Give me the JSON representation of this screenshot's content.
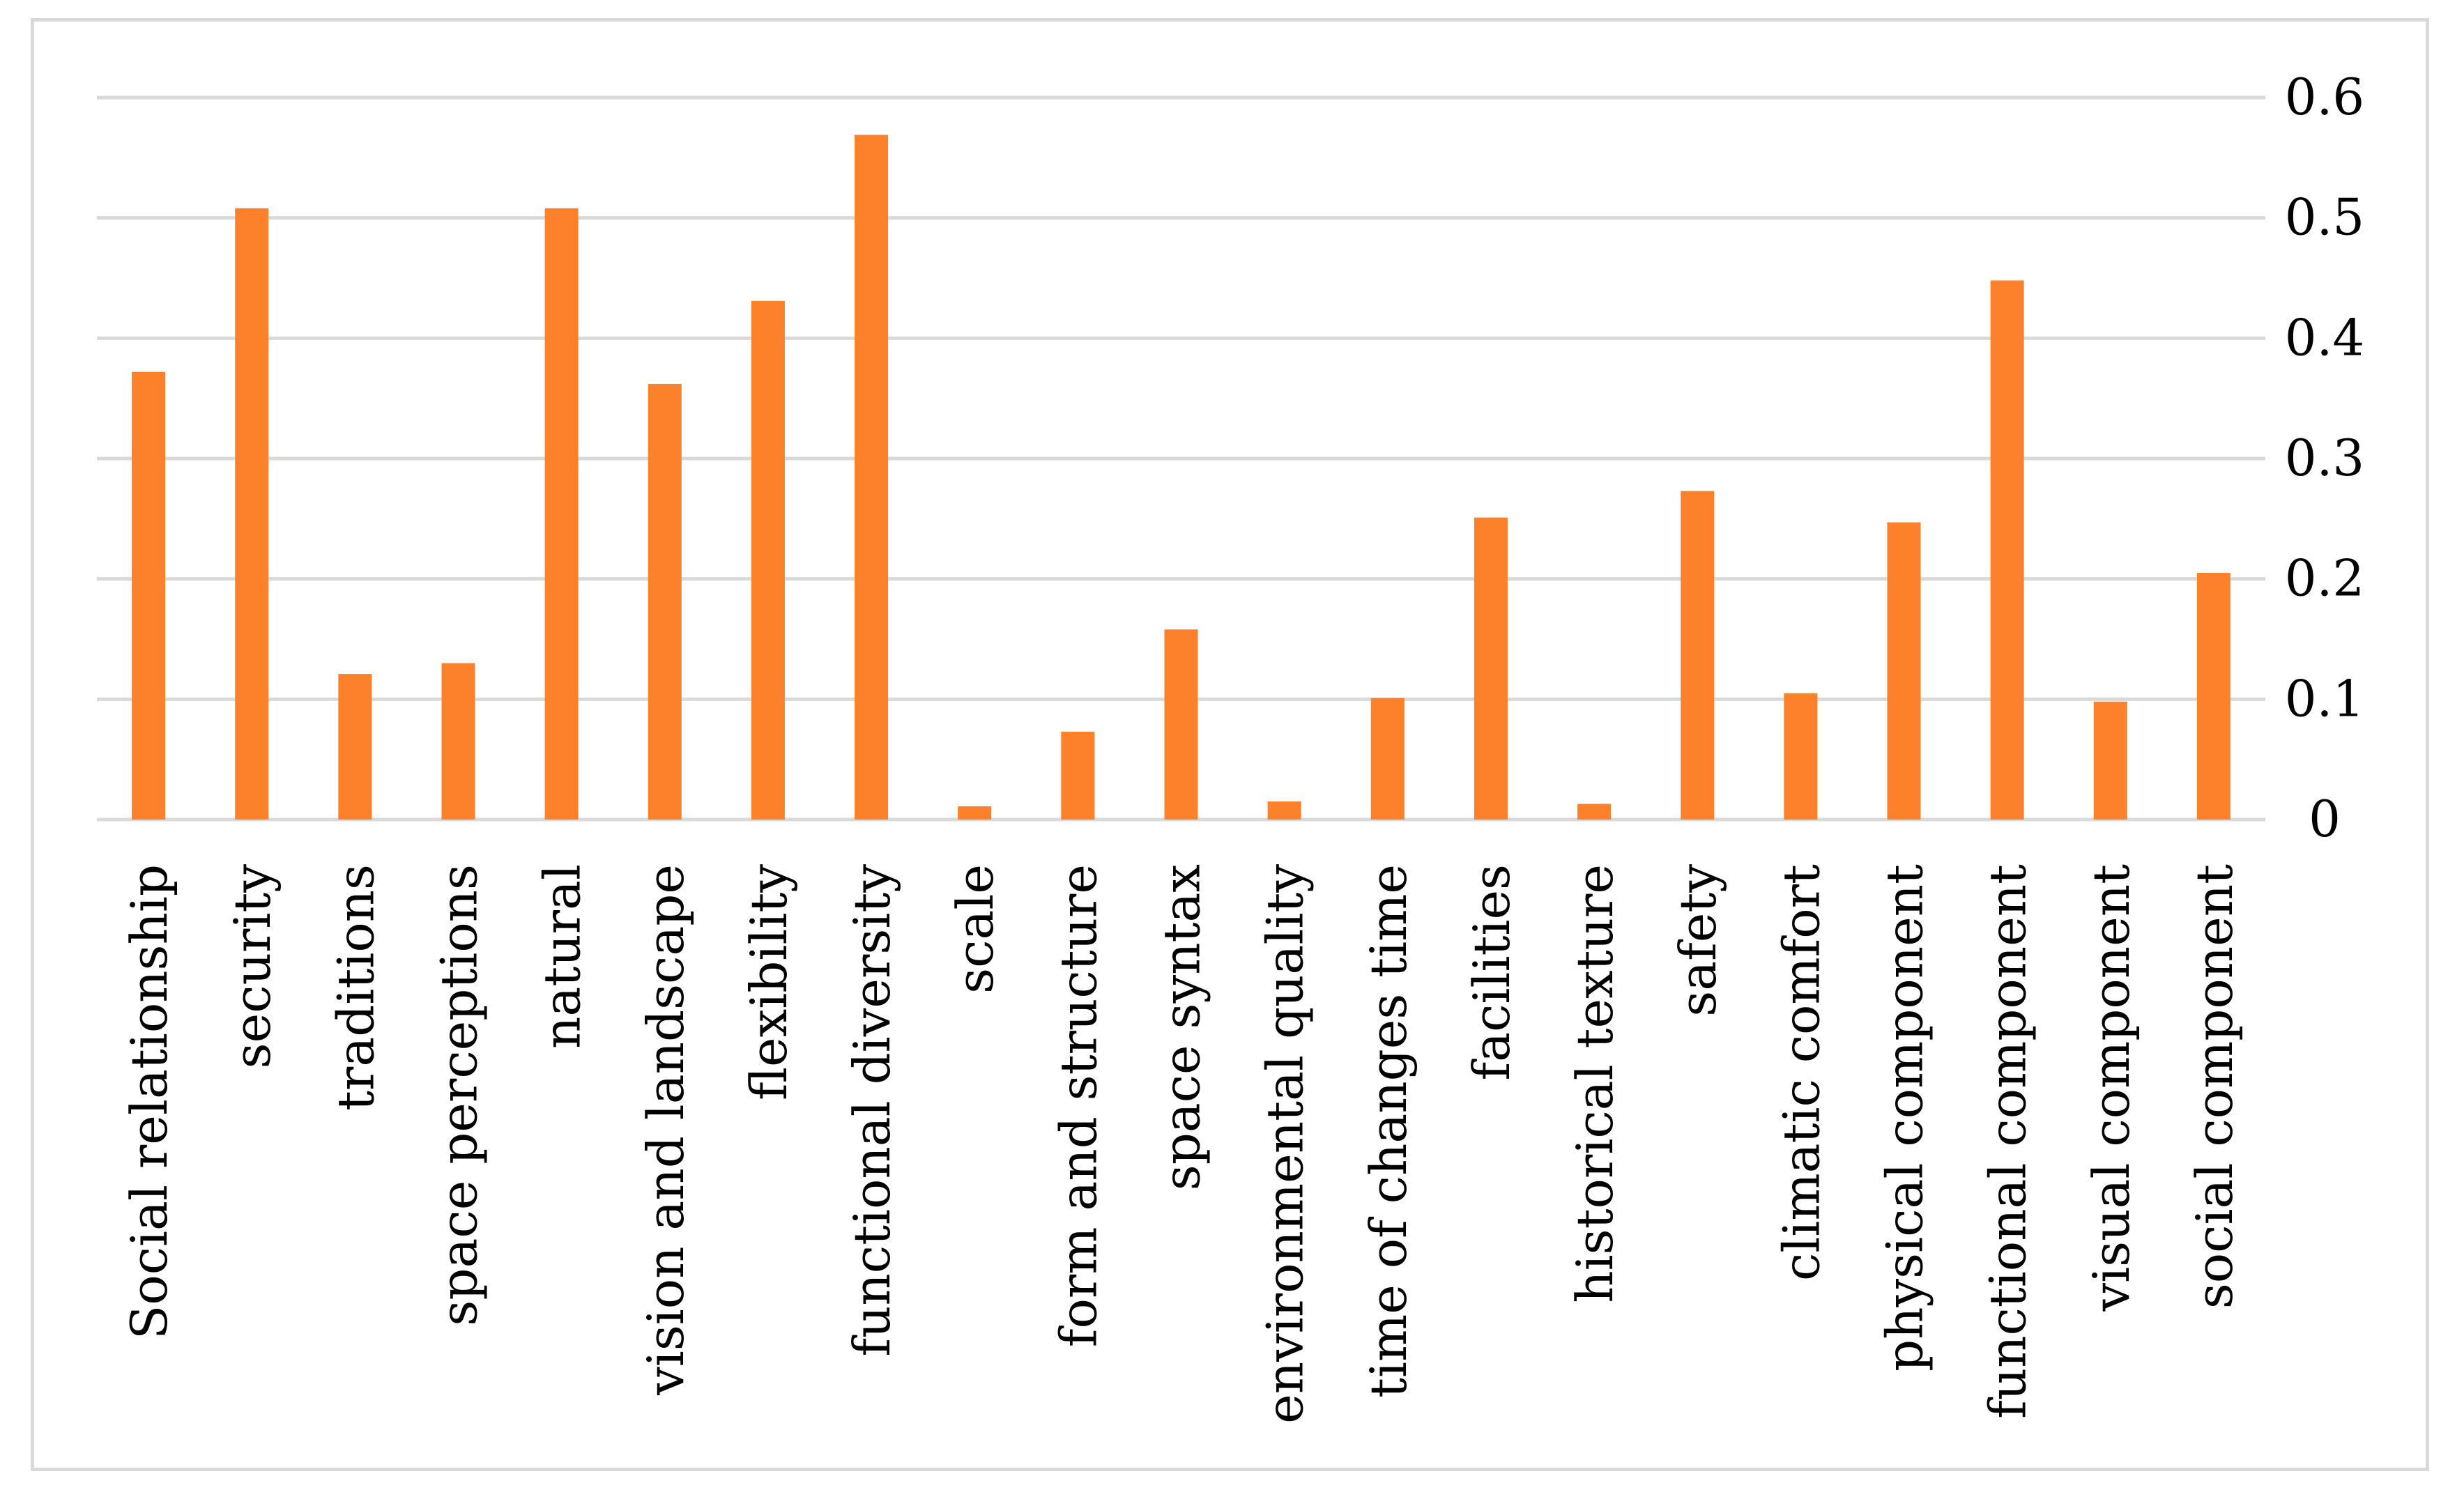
{
  "chart_data": {
    "type": "bar",
    "title": "",
    "xlabel": "",
    "ylabel": "",
    "y_axis_position": "right",
    "ylim": [
      0,
      0.6
    ],
    "grid": true,
    "legend": "none",
    "bar_color": "#fd812b",
    "grid_color": "#d9d9d9",
    "y_ticks": [
      "0",
      "0.1",
      "0.2",
      "0.3",
      "0.4",
      "0.5",
      "0.6"
    ],
    "y_tick_values": [
      0,
      0.1,
      0.2,
      0.3,
      0.4,
      0.5,
      0.6
    ],
    "categories": [
      "Social relationship",
      "security",
      "traditions",
      "space perceptions",
      "natural",
      "vision and landscape",
      "flexibility",
      "functional diversity",
      "scale",
      "form and structure",
      "space syntax",
      "environmental quality",
      "time of changes time",
      "facilities",
      "historical texture",
      "safety",
      "climatic comfort",
      "physical component",
      "functional component",
      "visual component",
      "social component"
    ],
    "values": [
      0.372,
      0.508,
      0.121,
      0.13,
      0.508,
      0.362,
      0.431,
      0.569,
      0.011,
      0.073,
      0.158,
      0.015,
      0.101,
      0.251,
      0.013,
      0.273,
      0.105,
      0.247,
      0.448,
      0.098,
      0.205
    ]
  }
}
